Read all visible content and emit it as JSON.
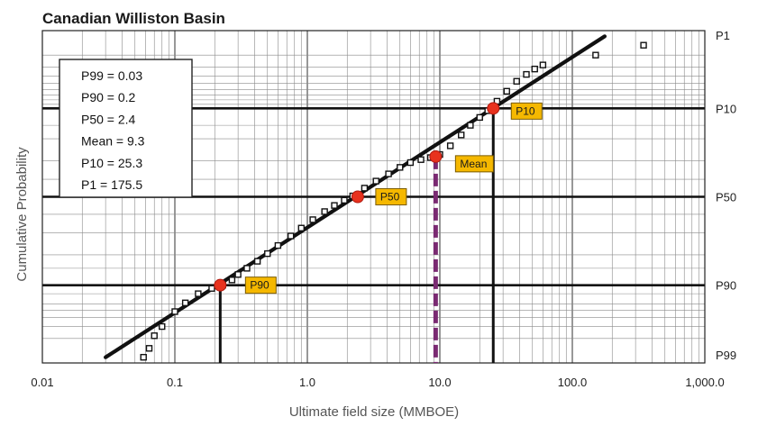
{
  "chart_data": {
    "type": "scatter",
    "title": "Canadian Williston Basin",
    "xlabel": "Ultimate field size (MMBOE)",
    "ylabel": "Cumulative Probability",
    "x_scale": "log",
    "y_scale": "log-probability",
    "xlim": [
      0.01,
      1000
    ],
    "x_ticks": [
      {
        "value": 0.01,
        "label": "0.01"
      },
      {
        "value": 0.1,
        "label": "0.1"
      },
      {
        "value": 1,
        "label": "1.0"
      },
      {
        "value": 10,
        "label": "10.0"
      },
      {
        "value": 100,
        "label": "100.0"
      },
      {
        "value": 1000,
        "label": "1,000.0"
      }
    ],
    "y_ticks": [
      {
        "value": 1,
        "label": "P1"
      },
      {
        "value": 10,
        "label": "P10"
      },
      {
        "value": 50,
        "label": "P50"
      },
      {
        "value": 90,
        "label": "P90"
      },
      {
        "value": 99,
        "label": "P99"
      }
    ],
    "grid": true,
    "stats_box": [
      {
        "label": "P99 = 0.03"
      },
      {
        "label": "P90 = 0.2"
      },
      {
        "label": "P50 = 2.4"
      },
      {
        "label": "Mean = 9.3"
      },
      {
        "label": "P10 = 25.3"
      },
      {
        "label": "P1 = 175.5"
      }
    ],
    "fit_line": {
      "x": [
        0.03,
        175.5
      ],
      "p": [
        99,
        1
      ]
    },
    "markers": [
      {
        "label": "P90",
        "x": 0.22,
        "p": 90,
        "drop": "solid"
      },
      {
        "label": "P50",
        "x": 2.4,
        "p": 50,
        "drop": "none"
      },
      {
        "label": "Mean",
        "x": 9.3,
        "p": 28,
        "drop": "dashed"
      },
      {
        "label": "P10",
        "x": 25.3,
        "p": 10,
        "drop": "solid"
      }
    ],
    "series": [
      {
        "x": [
          0.058,
          0.064,
          0.07,
          0.08,
          0.1,
          0.12,
          0.15,
          0.19,
          0.23,
          0.27,
          0.3,
          0.35,
          0.42,
          0.5,
          0.6,
          0.75,
          0.9,
          1.1,
          1.35,
          1.6,
          1.9,
          2.2,
          2.7,
          3.3,
          4.1,
          5.0,
          6.0,
          7.2,
          8.5,
          10.0,
          12.0,
          14.5,
          17.0,
          20.0,
          23.0,
          27.0,
          32.0,
          38.0,
          45.0,
          52.0,
          60.0,
          150.0,
          345.0
        ],
        "p": [
          99.0,
          98.6,
          97.8,
          97.0,
          95.2,
          93.8,
          92.0,
          90.8,
          90.0,
          88.6,
          87.0,
          85.0,
          82.5,
          79.5,
          76.0,
          71.5,
          67.5,
          63.0,
          58.5,
          55.0,
          52.0,
          49.5,
          45.0,
          41.0,
          37.0,
          33.5,
          31.0,
          29.5,
          28.5,
          27.0,
          23.0,
          18.5,
          15.0,
          12.5,
          10.6,
          8.3,
          6.3,
          4.7,
          3.8,
          3.2,
          2.8,
          2.0,
          1.4
        ]
      }
    ]
  }
}
